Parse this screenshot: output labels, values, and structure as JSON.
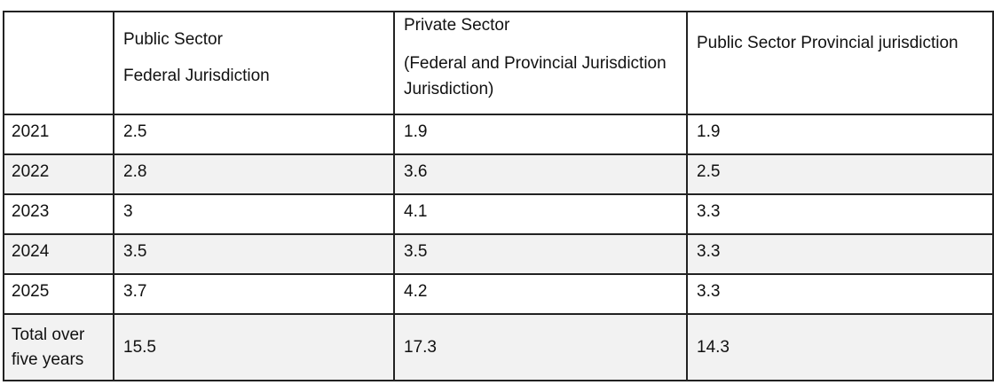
{
  "table": {
    "header": [
      {
        "lines": [
          "Public Sector",
          "Federal Jurisdiction"
        ]
      },
      {
        "lines": [
          "Private Sector",
          "(Federal and Provincial Jurisdiction Jurisdiction)"
        ]
      },
      {
        "lines": [
          "Public Sector Provincial jurisdiction"
        ]
      }
    ],
    "rows": [
      {
        "label": "2021",
        "values": [
          2.5,
          1.9,
          1.9
        ]
      },
      {
        "label": "2022",
        "values": [
          2.8,
          3.6,
          2.5
        ]
      },
      {
        "label": "2023",
        "values": [
          3,
          4.1,
          3.3
        ]
      },
      {
        "label": "2024",
        "values": [
          3.5,
          3.5,
          3.3
        ]
      },
      {
        "label": "2025",
        "values": [
          3.7,
          4.2,
          3.3
        ]
      },
      {
        "label": "Total over five years",
        "values": [
          15.5,
          17.3,
          14.3
        ]
      }
    ]
  }
}
